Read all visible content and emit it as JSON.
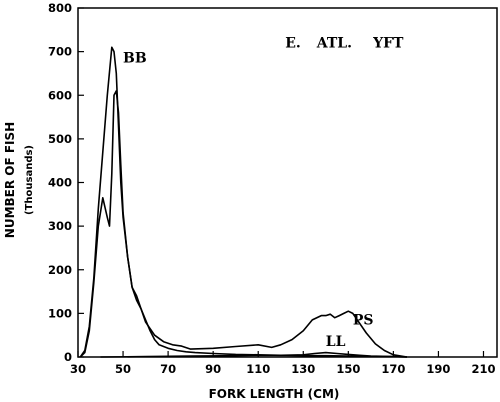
{
  "chart_data": {
    "type": "line",
    "xlabel": "FORK LENGTH (CM)",
    "ylabel": "NUMBER OF FISH",
    "ylabel_sub": "(Thousands)",
    "xlim": [
      30,
      216
    ],
    "ylim": [
      0,
      800
    ],
    "xticks": [
      30,
      50,
      70,
      90,
      110,
      130,
      150,
      170,
      190,
      210
    ],
    "yticks": [
      0,
      100,
      200,
      300,
      400,
      500,
      600,
      700,
      800
    ],
    "grid": false,
    "annotations": [
      {
        "text": "E.",
        "x": 122,
        "y": 710
      },
      {
        "text": "ATL.",
        "x": 136,
        "y": 710
      },
      {
        "text": "YFT",
        "x": 161,
        "y": 710
      },
      {
        "text": "BB",
        "x": 50,
        "y": 675
      },
      {
        "text": "PS",
        "x": 152,
        "y": 75
      },
      {
        "text": "LL",
        "x": 140,
        "y": 25
      }
    ],
    "series": [
      {
        "name": "BB",
        "x": [
          31,
          33,
          35,
          37,
          39,
          41,
          43,
          45,
          46,
          47,
          48,
          49,
          50,
          52,
          54,
          56,
          58,
          60,
          62,
          64,
          66,
          70,
          74,
          78,
          82,
          90,
          100,
          110,
          120,
          130,
          140,
          150,
          160,
          170,
          176
        ],
        "y": [
          0,
          15,
          70,
          180,
          340,
          470,
          600,
          710,
          700,
          650,
          530,
          400,
          320,
          230,
          160,
          130,
          110,
          85,
          60,
          40,
          28,
          20,
          15,
          12,
          10,
          8,
          6,
          5,
          4,
          3,
          3,
          2,
          1,
          1,
          0
        ]
      },
      {
        "name": "PS",
        "x": [
          31,
          33,
          35,
          37,
          39,
          41,
          43,
          44,
          45,
          46,
          47,
          48,
          49,
          50,
          52,
          54,
          56,
          58,
          60,
          64,
          68,
          72,
          76,
          80,
          90,
          100,
          110,
          116,
          120,
          125,
          130,
          134,
          138,
          140,
          142,
          144,
          146,
          148,
          150,
          152,
          154,
          158,
          162,
          166,
          170,
          176
        ],
        "y": [
          0,
          10,
          60,
          170,
          300,
          365,
          320,
          300,
          420,
          600,
          610,
          560,
          440,
          330,
          230,
          160,
          140,
          110,
          80,
          50,
          35,
          28,
          25,
          18,
          20,
          24,
          28,
          22,
          28,
          40,
          60,
          85,
          95,
          95,
          98,
          90,
          95,
          100,
          105,
          100,
          85,
          55,
          30,
          15,
          5,
          0
        ]
      },
      {
        "name": "LL",
        "x": [
          40,
          60,
          80,
          100,
          110,
          120,
          130,
          135,
          140,
          145,
          150,
          155,
          160,
          170,
          176
        ],
        "y": [
          0,
          1,
          2,
          3,
          4,
          4,
          5,
          8,
          10,
          8,
          6,
          4,
          2,
          1,
          0
        ]
      }
    ]
  }
}
